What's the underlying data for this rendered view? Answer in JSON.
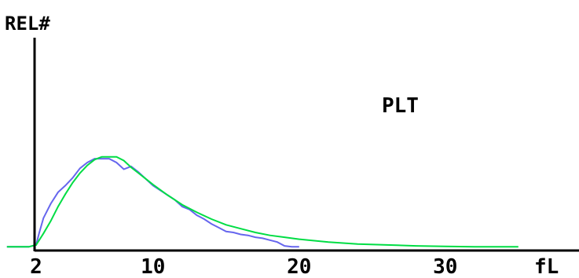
{
  "chart_data": {
    "type": "line",
    "ylabel": "REL#",
    "annotation": "PLT",
    "xunit": "fL",
    "xticks": [
      2,
      10,
      20,
      30
    ],
    "xlim": [
      0,
      35
    ],
    "grid": false,
    "legend": "none",
    "series": [
      {
        "color": "#6666ee",
        "x": [
          0,
          1.5,
          2,
          2.2,
          2.5,
          3,
          3.5,
          4,
          4.5,
          5,
          5.5,
          6,
          6.5,
          7,
          7.5,
          8,
          8.5,
          9,
          9.5,
          10,
          10.5,
          11,
          11.5,
          12,
          12.5,
          13,
          13.5,
          14,
          14.5,
          15,
          15.5,
          16,
          16.5,
          17,
          17.5,
          18,
          18.5,
          19,
          19.5,
          20
        ],
        "y": [
          0.03,
          0.03,
          0.05,
          0.17,
          0.33,
          0.48,
          0.6,
          0.67,
          0.75,
          0.85,
          0.91,
          0.95,
          0.95,
          0.95,
          0.91,
          0.84,
          0.87,
          0.81,
          0.74,
          0.67,
          0.62,
          0.57,
          0.52,
          0.45,
          0.42,
          0.36,
          0.32,
          0.27,
          0.23,
          0.19,
          0.18,
          0.16,
          0.15,
          0.13,
          0.12,
          0.1,
          0.08,
          0.04,
          0.03,
          0.03
        ]
      },
      {
        "color": "#00dd44",
        "x": [
          0,
          1.5,
          2,
          2.5,
          3,
          3.5,
          4,
          4.5,
          5,
          5.5,
          6,
          6.5,
          7,
          7.5,
          8,
          8.5,
          9,
          9.5,
          10,
          11,
          12,
          13,
          14,
          15,
          16,
          17,
          18,
          19,
          20,
          22,
          24,
          26,
          28,
          30,
          32,
          34,
          35
        ],
        "y": [
          0.03,
          0.03,
          0.05,
          0.17,
          0.3,
          0.45,
          0.58,
          0.7,
          0.8,
          0.88,
          0.94,
          0.97,
          0.97,
          0.97,
          0.93,
          0.86,
          0.8,
          0.74,
          0.68,
          0.57,
          0.47,
          0.39,
          0.32,
          0.26,
          0.22,
          0.18,
          0.15,
          0.13,
          0.11,
          0.08,
          0.06,
          0.05,
          0.04,
          0.035,
          0.03,
          0.03,
          0.03
        ]
      }
    ]
  }
}
